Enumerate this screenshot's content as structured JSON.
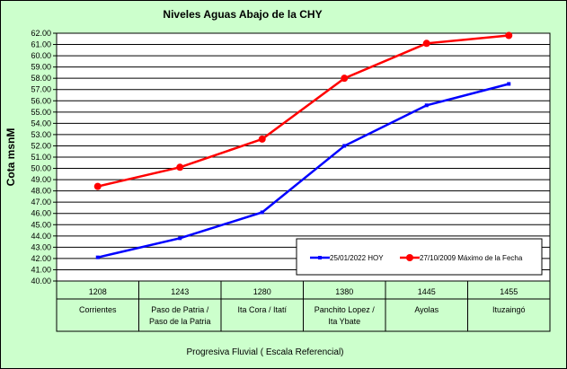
{
  "chart_data": {
    "type": "line",
    "title": "Niveles Aguas Abajo de la CHY",
    "ylabel": "Cota msnM",
    "xlabel": "Progresiva Fluvial ( Escala Referencial)",
    "ylim": [
      40.0,
      62.0
    ],
    "ytick_step": 1.0,
    "categories": [
      {
        "code": "1208",
        "name_line1": "Corrientes",
        "name_line2": ""
      },
      {
        "code": "1243",
        "name_line1": "Paso de Patria /",
        "name_line2": "Paso de la Patria"
      },
      {
        "code": "1280",
        "name_line1": "Ita Cora / Itatí",
        "name_line2": ""
      },
      {
        "code": "1380",
        "name_line1": "Panchito Lopez /",
        "name_line2": "Ita Ybate"
      },
      {
        "code": "1445",
        "name_line1": "Ayolas",
        "name_line2": ""
      },
      {
        "code": "1455",
        "name_line1": "Ituzaingó",
        "name_line2": ""
      }
    ],
    "series": [
      {
        "name": "25/01/2022 HOY",
        "color": "#0000ff",
        "marker": "square",
        "values": [
          42.1,
          43.8,
          46.1,
          52.0,
          55.6,
          57.5
        ]
      },
      {
        "name": "27/10/2009 Máximo de la Fecha",
        "color": "#ff0000",
        "marker": "circle",
        "values": [
          48.4,
          50.1,
          52.6,
          58.0,
          61.1,
          61.8
        ]
      }
    ],
    "grid": "horizontal",
    "legend_position": "lower-right"
  }
}
